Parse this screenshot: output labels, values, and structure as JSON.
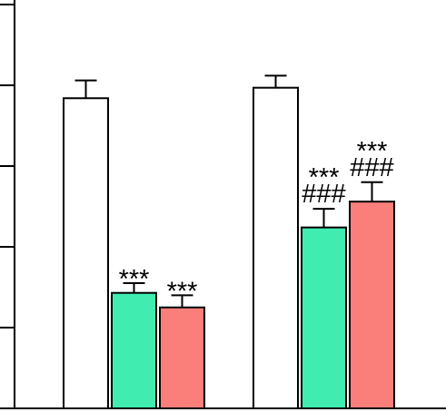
{
  "chart_data": {
    "type": "bar",
    "title": "",
    "xlabel": "",
    "ylabel": "",
    "ylim": [
      0,
      5
    ],
    "y_ticks": [
      0,
      1,
      2,
      3,
      4,
      5
    ],
    "grid": false,
    "legend": "none",
    "groups": [
      {
        "bars": [
          {
            "value": 3.84,
            "error": 0.22,
            "color": "#ffffff",
            "annotation": ""
          },
          {
            "value": 1.43,
            "error": 0.12,
            "color": "#40ecb0",
            "annotation": "***"
          },
          {
            "value": 1.25,
            "error": 0.15,
            "color": "#fa7f7b",
            "annotation": "***"
          }
        ]
      },
      {
        "bars": [
          {
            "value": 3.97,
            "error": 0.15,
            "color": "#ffffff",
            "annotation": ""
          },
          {
            "value": 2.24,
            "error": 0.23,
            "color": "#40ecb0",
            "annotation": "***\n###"
          },
          {
            "value": 2.56,
            "error": 0.24,
            "color": "#fa7f7b",
            "annotation": "***\n###"
          }
        ]
      }
    ]
  }
}
